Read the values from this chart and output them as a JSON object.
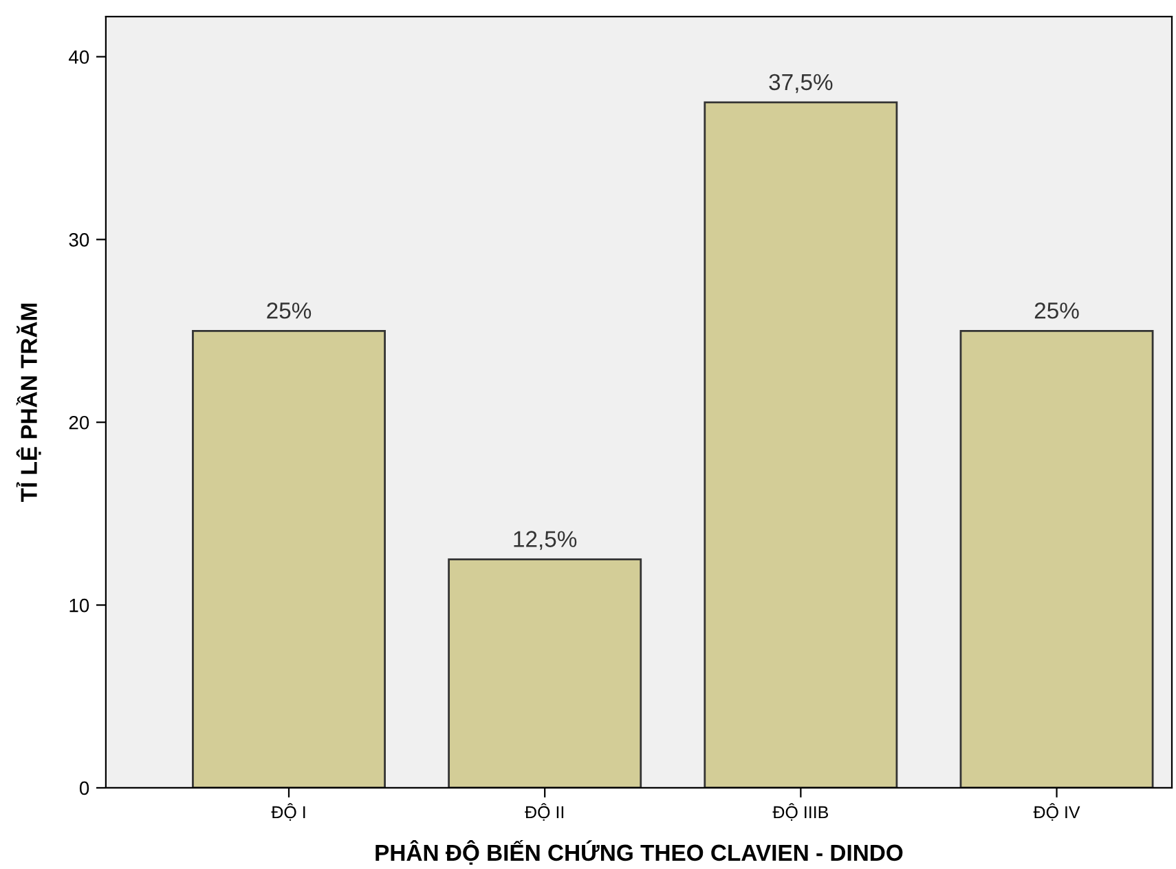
{
  "chart_data": {
    "type": "bar",
    "xlabel": "PHÂN ĐỘ BIẾN CHỨNG THEO CLAVIEN - DINDO",
    "ylabel": "TỈ LỆ PHẦN TRĂM",
    "categories": [
      "ĐỘ I",
      "ĐỘ II",
      "ĐỘ IIIB",
      "ĐỘ IV"
    ],
    "values": [
      25,
      12.5,
      37.5,
      25
    ],
    "value_labels": [
      "25%",
      "12,5%",
      "37,5%",
      "25%"
    ],
    "color": "#d3cd97",
    "ylim": [
      0,
      42.2
    ],
    "yticks": [
      0,
      10,
      20,
      30,
      40
    ],
    "grid": false
  }
}
